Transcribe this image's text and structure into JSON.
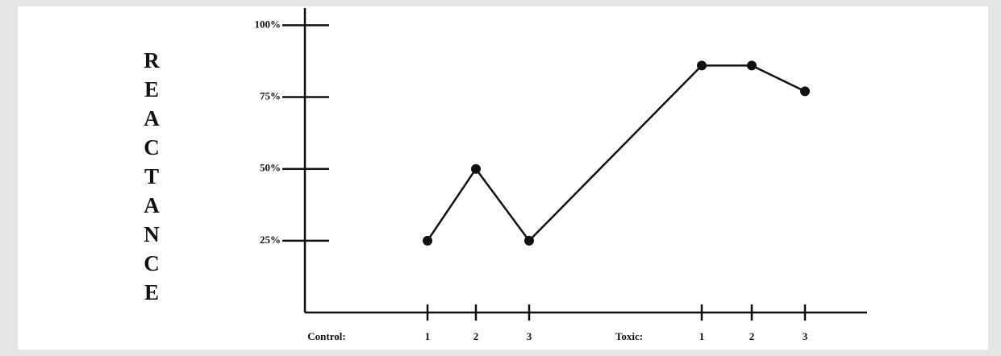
{
  "chart_data": {
    "type": "line",
    "y_label": "REACTANCE",
    "groups": [
      "Control:",
      "Toxic:"
    ],
    "categories": [
      "1",
      "2",
      "3",
      "1",
      "2",
      "3"
    ],
    "values": [
      25,
      50,
      25,
      86,
      86,
      77
    ],
    "color": "#111111",
    "ylim": [
      0,
      106
    ],
    "yticks": [
      {
        "value": 25,
        "label": "25%"
      },
      {
        "value": 50,
        "label": "50%"
      },
      {
        "value": 75,
        "label": "75%"
      },
      {
        "value": 100,
        "label": "100%"
      }
    ]
  }
}
